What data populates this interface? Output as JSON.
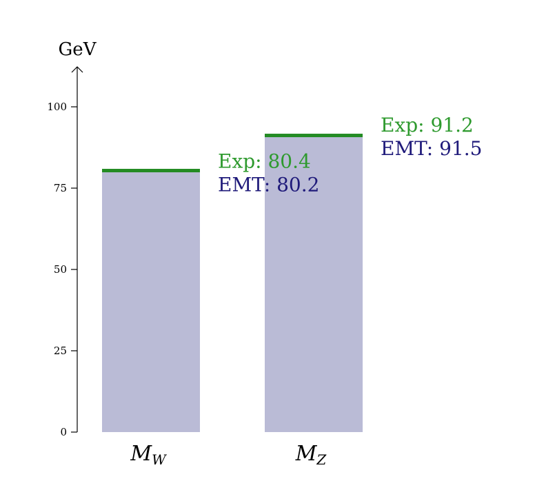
{
  "chart_data": {
    "type": "bar",
    "categories": [
      "M_W",
      "M_Z"
    ],
    "category_labels": [
      {
        "main": "M",
        "sub": "W"
      },
      {
        "main": "M",
        "sub": "Z"
      }
    ],
    "series": [
      {
        "name": "EMT",
        "values": [
          80.2,
          91.5
        ],
        "color": "#babbd6",
        "label_color": "#1f1a7a"
      },
      {
        "name": "Exp",
        "values": [
          80.4,
          91.2
        ],
        "color": "#238b23",
        "label_color": "#2e9a2e"
      }
    ],
    "data_labels": [
      [
        "EMT: 80.2",
        "EMT: 91.5"
      ],
      [
        "Exp: 80.4",
        "Exp: 91.2"
      ]
    ],
    "ylabel": "GeV",
    "ylim": [
      0,
      110
    ],
    "yticks": [
      "0",
      "25",
      "50",
      "75",
      "100"
    ],
    "grid": false
  }
}
